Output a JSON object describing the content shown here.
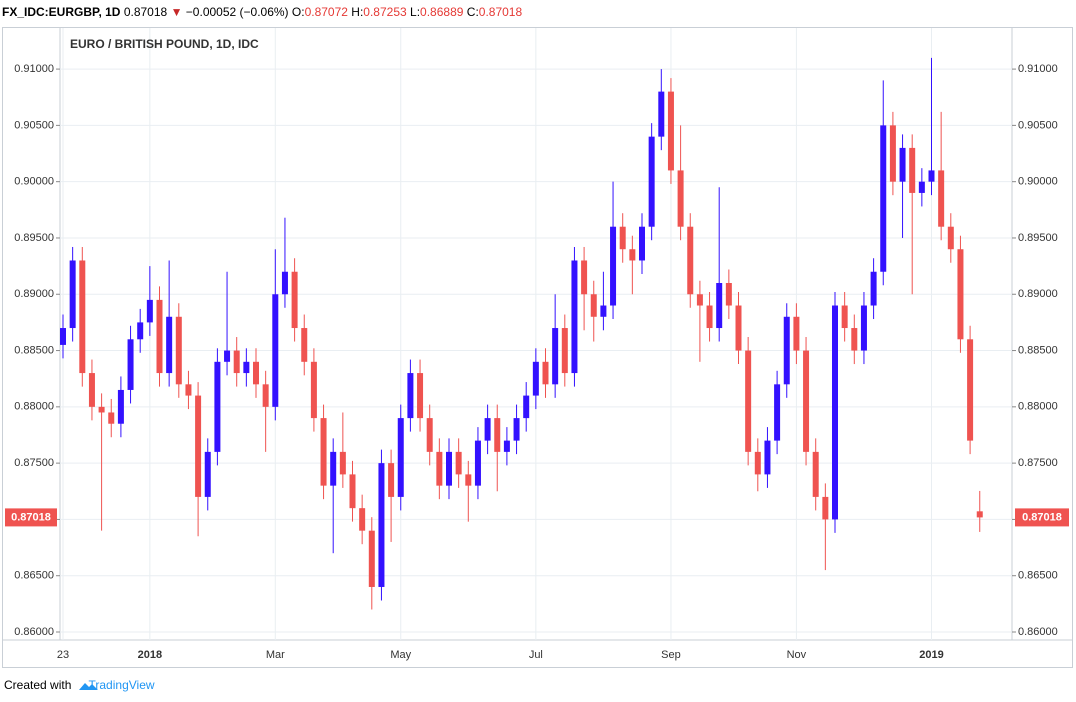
{
  "header": {
    "symbol": "FX_IDC:EURGBP, 1D",
    "last": "0.87018",
    "arrow": "▼",
    "change": "−0.00052 (−0.06%)",
    "ohlc": [
      {
        "key": "O:",
        "value": "0.87072"
      },
      {
        "key": "H:",
        "value": "0.87253"
      },
      {
        "key": "L:",
        "value": "0.86889"
      },
      {
        "key": "C:",
        "value": "0.87018"
      }
    ]
  },
  "footer": {
    "created": "Created with",
    "brand": "TradingView"
  },
  "chart_data": {
    "type": "candlestick",
    "title": "EURO / BRITISH POUND, 1D, IDC",
    "categories": [
      "23",
      null,
      null,
      null,
      null,
      null,
      null,
      null,
      null,
      "2018",
      null,
      null,
      null,
      null,
      null,
      null,
      null,
      null,
      null,
      null,
      null,
      null,
      "Mar",
      null,
      null,
      null,
      null,
      null,
      null,
      null,
      null,
      null,
      null,
      null,
      null,
      "May",
      null,
      null,
      null,
      null,
      null,
      null,
      null,
      null,
      null,
      null,
      null,
      null,
      null,
      "Jul",
      null,
      null,
      null,
      null,
      null,
      null,
      null,
      null,
      null,
      null,
      null,
      null,
      null,
      "Sep",
      null,
      null,
      null,
      null,
      null,
      null,
      null,
      null,
      null,
      null,
      null,
      null,
      "Nov",
      null,
      null,
      null,
      null,
      null,
      null,
      null,
      null,
      null,
      null,
      null,
      null,
      null,
      "2019",
      null,
      null,
      null,
      null,
      null
    ],
    "open": [
      0.8855,
      0.887,
      0.893,
      0.883,
      0.88,
      0.8795,
      0.8785,
      0.8815,
      0.886,
      0.8875,
      0.8895,
      0.883,
      0.888,
      0.882,
      0.881,
      0.872,
      0.876,
      0.884,
      0.885,
      0.883,
      0.884,
      0.882,
      0.88,
      0.89,
      0.892,
      0.887,
      0.884,
      0.879,
      0.873,
      0.876,
      0.874,
      0.871,
      0.869,
      0.864,
      0.875,
      0.872,
      0.879,
      0.883,
      0.879,
      0.876,
      0.873,
      0.876,
      0.874,
      0.873,
      0.877,
      0.879,
      0.876,
      0.877,
      0.879,
      0.881,
      0.884,
      0.882,
      0.887,
      0.883,
      0.893,
      0.89,
      0.888,
      0.889,
      0.896,
      0.894,
      0.893,
      0.896,
      0.904,
      0.908,
      0.901,
      0.896,
      0.89,
      0.889,
      0.887,
      0.891,
      0.889,
      0.885,
      0.876,
      0.874,
      0.877,
      0.882,
      0.888,
      0.885,
      0.876,
      0.872,
      0.87,
      0.889,
      0.887,
      0.885,
      0.889,
      0.892,
      0.905,
      0.9,
      0.903,
      0.899,
      0.9,
      0.901,
      0.896,
      0.894,
      0.886,
      0.87072
    ],
    "high": [
      0.8882,
      0.8942,
      0.8942,
      0.8842,
      0.8812,
      0.8807,
      0.8827,
      0.8872,
      0.8887,
      0.8925,
      0.8907,
      0.893,
      0.8892,
      0.8832,
      0.8822,
      0.8772,
      0.8852,
      0.892,
      0.8862,
      0.8852,
      0.8852,
      0.8832,
      0.894,
      0.8968,
      0.8932,
      0.8882,
      0.8852,
      0.8802,
      0.8772,
      0.8795,
      0.8752,
      0.8722,
      0.8702,
      0.8762,
      0.8762,
      0.8802,
      0.8842,
      0.8842,
      0.8802,
      0.8772,
      0.8772,
      0.8772,
      0.8752,
      0.8782,
      0.8802,
      0.8802,
      0.8782,
      0.8802,
      0.8822,
      0.8852,
      0.8852,
      0.89,
      0.8882,
      0.8942,
      0.8942,
      0.8912,
      0.892,
      0.9,
      0.8972,
      0.8952,
      0.8972,
      0.9052,
      0.91,
      0.9092,
      0.905,
      0.8972,
      0.8912,
      0.8902,
      0.8995,
      0.8922,
      0.8902,
      0.8862,
      0.8772,
      0.8782,
      0.8832,
      0.8892,
      0.8892,
      0.8862,
      0.8772,
      0.8732,
      0.8902,
      0.8902,
      0.8882,
      0.8902,
      0.8932,
      0.909,
      0.9062,
      0.9042,
      0.9042,
      0.9012,
      0.911,
      0.9062,
      0.8972,
      0.8952,
      0.8872,
      0.87253
    ],
    "low": [
      0.8843,
      0.8858,
      0.8818,
      0.8788,
      0.869,
      0.8773,
      0.8773,
      0.8803,
      0.8848,
      0.8863,
      0.8818,
      0.8818,
      0.8808,
      0.8798,
      0.8685,
      0.8708,
      0.8748,
      0.8828,
      0.8818,
      0.8818,
      0.8808,
      0.876,
      0.8788,
      0.8888,
      0.8858,
      0.8828,
      0.8778,
      0.8718,
      0.867,
      0.8728,
      0.8698,
      0.8678,
      0.862,
      0.8628,
      0.868,
      0.8708,
      0.8778,
      0.8778,
      0.8748,
      0.8718,
      0.8718,
      0.8728,
      0.8698,
      0.8718,
      0.8758,
      0.8725,
      0.8748,
      0.8758,
      0.8778,
      0.8798,
      0.8808,
      0.8808,
      0.8818,
      0.8818,
      0.8868,
      0.8858,
      0.8868,
      0.8878,
      0.8928,
      0.89,
      0.8918,
      0.8948,
      0.9028,
      0.8998,
      0.8948,
      0.8888,
      0.884,
      0.8858,
      0.8858,
      0.8878,
      0.8838,
      0.8748,
      0.8725,
      0.8728,
      0.8758,
      0.8808,
      0.8838,
      0.8748,
      0.8708,
      0.8655,
      0.8688,
      0.8858,
      0.8838,
      0.8838,
      0.8878,
      0.8908,
      0.8988,
      0.895,
      0.89,
      0.8978,
      0.8988,
      0.8948,
      0.8928,
      0.8848,
      0.8758,
      0.86889
    ],
    "close": [
      0.887,
      0.893,
      0.883,
      0.88,
      0.8795,
      0.8785,
      0.8815,
      0.886,
      0.8875,
      0.8895,
      0.883,
      0.888,
      0.882,
      0.881,
      0.872,
      0.876,
      0.884,
      0.885,
      0.883,
      0.884,
      0.882,
      0.88,
      0.89,
      0.892,
      0.887,
      0.884,
      0.879,
      0.873,
      0.876,
      0.874,
      0.871,
      0.869,
      0.864,
      0.875,
      0.872,
      0.879,
      0.883,
      0.879,
      0.876,
      0.873,
      0.876,
      0.874,
      0.873,
      0.877,
      0.879,
      0.876,
      0.877,
      0.879,
      0.881,
      0.884,
      0.882,
      0.887,
      0.883,
      0.893,
      0.89,
      0.888,
      0.889,
      0.896,
      0.894,
      0.893,
      0.896,
      0.904,
      0.908,
      0.901,
      0.896,
      0.89,
      0.889,
      0.887,
      0.891,
      0.889,
      0.885,
      0.876,
      0.874,
      0.877,
      0.882,
      0.888,
      0.885,
      0.876,
      0.872,
      0.87,
      0.889,
      0.887,
      0.885,
      0.889,
      0.892,
      0.905,
      0.9,
      0.903,
      0.899,
      0.9,
      0.901,
      0.896,
      0.894,
      0.886,
      0.877,
      0.87018
    ],
    "up_color": "#3311ff",
    "down_color": "#ef5350",
    "ylim": [
      0.85929,
      0.91365
    ],
    "yticks": [
      {
        "value": 0.86,
        "label": "0.86000"
      },
      {
        "value": 0.865,
        "label": "0.86500"
      },
      {
        "value": 0.87,
        "label": "0.87000"
      },
      {
        "value": 0.875,
        "label": "0.87500"
      },
      {
        "value": 0.88,
        "label": "0.88000"
      },
      {
        "value": 0.885,
        "label": "0.88500"
      },
      {
        "value": 0.89,
        "label": "0.89000"
      },
      {
        "value": 0.895,
        "label": "0.89500"
      },
      {
        "value": 0.9,
        "label": "0.90000"
      },
      {
        "value": 0.905,
        "label": "0.90500"
      },
      {
        "value": 0.91,
        "label": "0.91000"
      }
    ],
    "last_price": {
      "value": 0.87018,
      "label": "0.87018"
    },
    "grid": true
  }
}
